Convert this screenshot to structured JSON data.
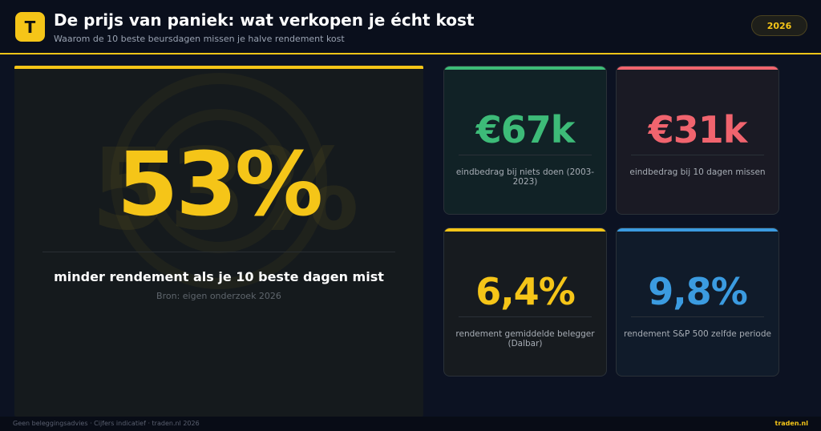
{
  "header": {
    "logo": "T",
    "title": "De prijs van paniek: wat verkopen je écht kost",
    "subtitle": "Waarom de 10 beste beursdagen missen je halve rendement kost",
    "badge": "2026"
  },
  "main_card": {
    "value": "53%",
    "label": "minder rendement als je 10 beste dagen mist",
    "source": "Bron: eigen onderzoek 2026"
  },
  "cards": [
    {
      "value": "€67k",
      "label": "eindbedrag bij niets doen (2003-2023)"
    },
    {
      "value": "€31k",
      "label": "eindbedrag bij 10 dagen missen"
    },
    {
      "value": "6,4%",
      "label": "rendement gemiddelde belegger (Dalbar)"
    },
    {
      "value": "9,8%",
      "label": "rendement S&P 500 zelfde periode"
    }
  ],
  "footer": {
    "left": "Geen beleggingsadvies · Cijfers indicatief · traden.nl 2026",
    "right": "traden.nl"
  }
}
